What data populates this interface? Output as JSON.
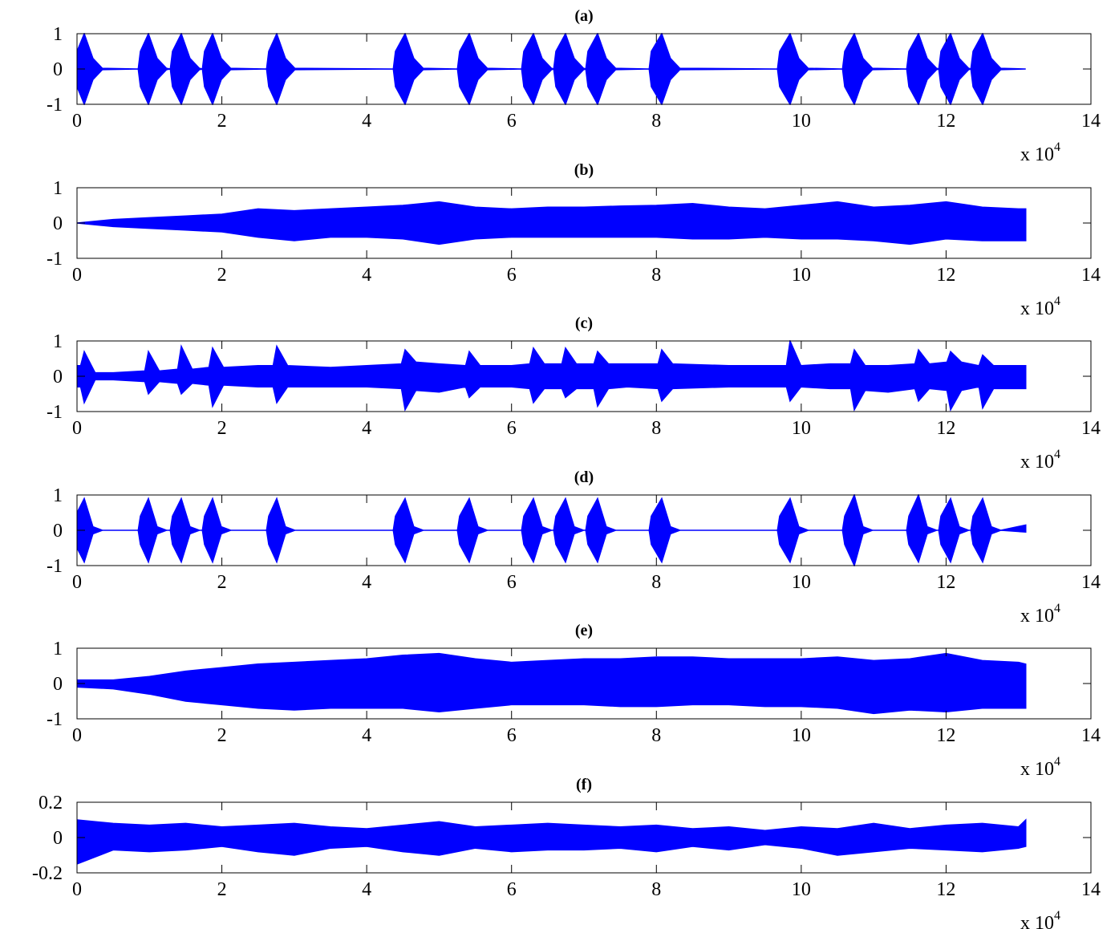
{
  "chart_data": [
    {
      "type": "envelope",
      "title": "(a)",
      "color": "#0000ff",
      "xlabel": "x 10",
      "xlabel_exponent": "4",
      "xlim": [
        0,
        140000
      ],
      "ylim": [
        -1,
        1
      ],
      "yticks": [
        -1,
        0,
        1
      ],
      "xticks": [
        0,
        {
          "value": 20000,
          "label": "2"
        },
        {
          "value": 40000,
          "label": "4"
        },
        {
          "value": 60000,
          "label": "6"
        },
        {
          "value": 80000,
          "label": "8"
        },
        {
          "value": 100000,
          "label": "10"
        },
        {
          "value": 120000,
          "label": "12"
        },
        {
          "value": 140000,
          "label": "14"
        }
      ],
      "x": [
        0,
        1000,
        2200,
        3500,
        8450,
        8750,
        9860,
        11060,
        12360,
        12880,
        13180,
        14400,
        15600,
        16900,
        17310,
        17610,
        18720,
        19920,
        21220,
        26170,
        26470,
        27580,
        28780,
        30080,
        43670,
        43970,
        45300,
        46500,
        47800,
        52530,
        52830,
        54160,
        55360,
        56660,
        61390,
        61690,
        63020,
        64220,
        65520,
        65820,
        66120,
        67450,
        68650,
        69950,
        70250,
        70550,
        71880,
        73080,
        74380,
        79000,
        79300,
        80740,
        81940,
        83240,
        96720,
        97020,
        98460,
        99660,
        100960,
        105700,
        106000,
        107330,
        108530,
        109830,
        114560,
        114860,
        116190,
        117390,
        118690,
        118990,
        119290,
        120620,
        121820,
        123120,
        123420,
        123720,
        125050,
        126250,
        127550,
        131000
      ],
      "upper": [
        0.5,
        1,
        0.3,
        0.02,
        0,
        0.5,
        1,
        0.3,
        0.02,
        0,
        0.5,
        1,
        0.3,
        0.02,
        0,
        0.5,
        1,
        0.3,
        0.02,
        0,
        0.5,
        1,
        0.3,
        0.02,
        0,
        0.5,
        1,
        0.3,
        0.02,
        0,
        0.5,
        1,
        0.3,
        0.02,
        0,
        0.5,
        1,
        0.3,
        0.02,
        0,
        0.5,
        1,
        0.3,
        0.02,
        0,
        0.5,
        1,
        0.3,
        0.02,
        0,
        0.5,
        1,
        0.3,
        0.02,
        0,
        0.5,
        1,
        0.3,
        0.02,
        0,
        0.5,
        1,
        0.3,
        0.02,
        0,
        0.5,
        1,
        0.3,
        0.02,
        0,
        0.5,
        1,
        0.3,
        0.02,
        0,
        0.5,
        1,
        0.3,
        0.02,
        0
      ],
      "lower": [
        -0.5,
        -1,
        -0.3,
        -0.02,
        0,
        -0.5,
        -1,
        -0.3,
        -0.02,
        0,
        -0.5,
        -1,
        -0.3,
        -0.02,
        0,
        -0.5,
        -1,
        -0.3,
        -0.02,
        0,
        -0.5,
        -1,
        -0.3,
        -0.02,
        0,
        -0.5,
        -1,
        -0.3,
        -0.02,
        0,
        -0.5,
        -1,
        -0.3,
        -0.02,
        0,
        -0.5,
        -1,
        -0.3,
        -0.02,
        0,
        -0.5,
        -1,
        -0.3,
        -0.02,
        0,
        -0.5,
        -1,
        -0.3,
        -0.02,
        0,
        -0.5,
        -1,
        -0.3,
        -0.02,
        0,
        -0.5,
        -1,
        -0.3,
        -0.02,
        0,
        -0.5,
        -1,
        -0.3,
        -0.02,
        0,
        -0.5,
        -1,
        -0.3,
        -0.02,
        0,
        -0.5,
        -1,
        -0.3,
        -0.02,
        0,
        -0.5,
        -1,
        -0.3,
        -0.02,
        0
      ]
    },
    {
      "type": "envelope",
      "title": "(b)",
      "color": "#0000ff",
      "xlabel": "x 10",
      "xlabel_exponent": "4",
      "xlim": [
        0,
        140000
      ],
      "ylim": [
        -1,
        1
      ],
      "yticks": [
        -1,
        0,
        1
      ],
      "xticks": [
        0,
        {
          "value": 20000,
          "label": "2"
        },
        {
          "value": 40000,
          "label": "4"
        },
        {
          "value": 60000,
          "label": "6"
        },
        {
          "value": 80000,
          "label": "8"
        },
        {
          "value": 100000,
          "label": "10"
        },
        {
          "value": 120000,
          "label": "12"
        },
        {
          "value": 140000,
          "label": "14"
        }
      ],
      "x": [
        0,
        5000,
        10000,
        15000,
        20000,
        25000,
        30000,
        35000,
        40000,
        45000,
        50000,
        55000,
        60000,
        65000,
        70000,
        75000,
        80000,
        85000,
        90000,
        95000,
        100000,
        105000,
        110000,
        115000,
        120000,
        125000,
        130000,
        131000
      ],
      "upper": [
        0,
        0.1,
        0.15,
        0.2,
        0.25,
        0.4,
        0.35,
        0.4,
        0.45,
        0.5,
        0.6,
        0.45,
        0.4,
        0.45,
        0.45,
        0.48,
        0.5,
        0.55,
        0.45,
        0.4,
        0.5,
        0.6,
        0.45,
        0.5,
        0.6,
        0.45,
        0.4,
        0.4
      ],
      "lower": [
        0,
        -0.1,
        -0.15,
        -0.2,
        -0.25,
        -0.4,
        -0.5,
        -0.4,
        -0.4,
        -0.45,
        -0.6,
        -0.45,
        -0.4,
        -0.4,
        -0.4,
        -0.4,
        -0.4,
        -0.45,
        -0.45,
        -0.4,
        -0.45,
        -0.45,
        -0.5,
        -0.6,
        -0.45,
        -0.5,
        -0.5,
        -0.5
      ]
    },
    {
      "type": "envelope",
      "title": "(c)",
      "color": "#0000ff",
      "xlabel": "x 10",
      "xlabel_exponent": "4",
      "xlim": [
        0,
        140000
      ],
      "ylim": [
        -1,
        1
      ],
      "yticks": [
        -1,
        0,
        1
      ],
      "xticks": [
        0,
        {
          "value": 20000,
          "label": "2"
        },
        {
          "value": 40000,
          "label": "4"
        },
        {
          "value": 60000,
          "label": "6"
        },
        {
          "value": 80000,
          "label": "8"
        },
        {
          "value": 100000,
          "label": "10"
        },
        {
          "value": 120000,
          "label": "12"
        },
        {
          "value": 140000,
          "label": "14"
        }
      ],
      "x": [
        0,
        500,
        1000,
        2500,
        5000,
        9360,
        9860,
        11360,
        13900,
        14400,
        15900,
        18220,
        18720,
        20220,
        25000,
        27080,
        27580,
        29080,
        35000,
        40000,
        44800,
        45300,
        46800,
        50000,
        53660,
        54160,
        55660,
        60000,
        62520,
        63020,
        64520,
        66950,
        67450,
        68950,
        71380,
        71880,
        73380,
        76000,
        80240,
        80740,
        82240,
        90000,
        97960,
        98460,
        99960,
        104000,
        106830,
        107330,
        108830,
        112000,
        115690,
        116190,
        117690,
        120120,
        120620,
        122120,
        124550,
        125050,
        126550,
        131000
      ],
      "upper": [
        0.3,
        0.3,
        0.7,
        0.1,
        0.1,
        0.15,
        0.7,
        0.15,
        0.2,
        0.85,
        0.2,
        0.25,
        0.8,
        0.25,
        0.3,
        0.3,
        0.85,
        0.3,
        0.25,
        0.3,
        0.35,
        0.75,
        0.4,
        0.35,
        0.3,
        0.7,
        0.3,
        0.3,
        0.35,
        0.8,
        0.35,
        0.35,
        0.8,
        0.35,
        0.35,
        0.7,
        0.35,
        0.35,
        0.35,
        0.75,
        0.35,
        0.3,
        0.3,
        1,
        0.3,
        0.35,
        0.35,
        0.75,
        0.3,
        0.3,
        0.35,
        0.75,
        0.35,
        0.4,
        0.7,
        0.4,
        0.3,
        0.6,
        0.3,
        0.3
      ],
      "lower": [
        -0.3,
        -0.3,
        -0.75,
        -0.1,
        -0.1,
        -0.15,
        -0.5,
        -0.15,
        -0.2,
        -0.5,
        -0.2,
        -0.25,
        -0.85,
        -0.25,
        -0.3,
        -0.3,
        -0.75,
        -0.3,
        -0.3,
        -0.3,
        -0.35,
        -0.95,
        -0.4,
        -0.45,
        -0.3,
        -0.6,
        -0.3,
        -0.3,
        -0.35,
        -0.75,
        -0.35,
        -0.35,
        -0.6,
        -0.35,
        -0.35,
        -0.85,
        -0.35,
        -0.3,
        -0.35,
        -0.7,
        -0.35,
        -0.3,
        -0.3,
        -0.7,
        -0.3,
        -0.35,
        -0.35,
        -0.95,
        -0.4,
        -0.45,
        -0.35,
        -0.7,
        -0.35,
        -0.4,
        -0.95,
        -0.4,
        -0.3,
        -0.9,
        -0.35,
        -0.35
      ]
    },
    {
      "type": "envelope",
      "title": "(d)",
      "color": "#0000ff",
      "xlabel": "x 10",
      "xlabel_exponent": "4",
      "xlim": [
        0,
        140000
      ],
      "ylim": [
        -1,
        1
      ],
      "yticks": [
        -1,
        0,
        1
      ],
      "xticks": [
        0,
        {
          "value": 20000,
          "label": "2"
        },
        {
          "value": 40000,
          "label": "4"
        },
        {
          "value": 60000,
          "label": "6"
        },
        {
          "value": 80000,
          "label": "8"
        },
        {
          "value": 100000,
          "label": "10"
        },
        {
          "value": 120000,
          "label": "12"
        },
        {
          "value": 140000,
          "label": "14"
        }
      ],
      "x": [
        0,
        1000,
        2200,
        3500,
        8450,
        8750,
        9860,
        11060,
        12360,
        12880,
        13180,
        14400,
        15600,
        16900,
        17310,
        17610,
        18720,
        19920,
        21220,
        26170,
        26470,
        27580,
        28780,
        30080,
        43670,
        43970,
        45300,
        46500,
        47800,
        52530,
        52830,
        54160,
        55360,
        56660,
        61390,
        61690,
        63020,
        64220,
        65520,
        65820,
        66120,
        67450,
        68650,
        69950,
        70250,
        70550,
        71880,
        73080,
        74380,
        79000,
        79300,
        80740,
        81940,
        83240,
        96720,
        97020,
        98460,
        99660,
        100960,
        105700,
        106000,
        107330,
        108530,
        109830,
        114560,
        114860,
        116190,
        117390,
        118690,
        118990,
        119290,
        120620,
        121820,
        123120,
        123420,
        123720,
        125050,
        126250,
        127550,
        131000
      ],
      "upper": [
        0.5,
        0.9,
        0.1,
        0,
        0,
        0.4,
        0.9,
        0.1,
        0,
        0,
        0.4,
        0.9,
        0.1,
        0,
        0,
        0.4,
        0.9,
        0.1,
        0,
        0,
        0.4,
        0.9,
        0.1,
        0,
        0,
        0.4,
        0.9,
        0.1,
        0,
        0,
        0.4,
        0.9,
        0.1,
        0,
        0,
        0.4,
        0.9,
        0.1,
        0,
        0,
        0.4,
        0.9,
        0.1,
        0,
        0,
        0.4,
        0.9,
        0.1,
        0,
        0,
        0.4,
        0.9,
        0.1,
        0,
        0,
        0.4,
        0.9,
        0.1,
        0,
        0,
        0.4,
        1,
        0.1,
        0,
        0,
        0.4,
        1,
        0.1,
        0,
        0,
        0.4,
        0.9,
        0.1,
        0,
        0,
        0.4,
        0.9,
        0.1,
        0,
        0.15
      ],
      "lower": [
        -0.5,
        -0.9,
        -0.1,
        0,
        0,
        -0.4,
        -0.9,
        -0.1,
        0,
        0,
        -0.4,
        -0.9,
        -0.1,
        0,
        0,
        -0.4,
        -0.9,
        -0.1,
        0,
        0,
        -0.4,
        -0.9,
        -0.1,
        0,
        0,
        -0.4,
        -0.9,
        -0.1,
        0,
        0,
        -0.4,
        -0.9,
        -0.1,
        0,
        0,
        -0.4,
        -0.9,
        -0.1,
        0,
        0,
        -0.4,
        -0.9,
        -0.1,
        0,
        0,
        -0.4,
        -0.9,
        -0.1,
        0,
        0,
        -0.4,
        -0.9,
        -0.1,
        0,
        0,
        -0.4,
        -0.9,
        -0.1,
        0,
        0,
        -0.4,
        -1,
        -0.1,
        0,
        0,
        -0.4,
        -0.9,
        -0.1,
        0,
        0,
        -0.4,
        -0.9,
        -0.1,
        0,
        0,
        -0.4,
        -0.9,
        -0.1,
        0,
        -0.05
      ]
    },
    {
      "type": "envelope",
      "title": "(e)",
      "color": "#0000ff",
      "xlabel": "x 10",
      "xlabel_exponent": "4",
      "xlim": [
        0,
        140000
      ],
      "ylim": [
        -1,
        1
      ],
      "yticks": [
        -1,
        0,
        1
      ],
      "xticks": [
        0,
        {
          "value": 20000,
          "label": "2"
        },
        {
          "value": 40000,
          "label": "4"
        },
        {
          "value": 60000,
          "label": "6"
        },
        {
          "value": 80000,
          "label": "8"
        },
        {
          "value": 100000,
          "label": "10"
        },
        {
          "value": 120000,
          "label": "12"
        },
        {
          "value": 140000,
          "label": "14"
        }
      ],
      "x": [
        0,
        5000,
        10000,
        15000,
        20000,
        25000,
        30000,
        35000,
        40000,
        45000,
        50000,
        55000,
        60000,
        65000,
        70000,
        75000,
        80000,
        85000,
        90000,
        95000,
        100000,
        105000,
        110000,
        115000,
        120000,
        125000,
        130000,
        131000
      ],
      "upper": [
        0.1,
        0.1,
        0.2,
        0.35,
        0.45,
        0.55,
        0.6,
        0.65,
        0.7,
        0.8,
        0.85,
        0.7,
        0.6,
        0.65,
        0.7,
        0.7,
        0.75,
        0.75,
        0.7,
        0.7,
        0.7,
        0.75,
        0.65,
        0.7,
        0.85,
        0.65,
        0.6,
        0.55
      ],
      "lower": [
        -0.1,
        -0.15,
        -0.3,
        -0.5,
        -0.6,
        -0.7,
        -0.75,
        -0.7,
        -0.7,
        -0.7,
        -0.8,
        -0.7,
        -0.6,
        -0.6,
        -0.6,
        -0.65,
        -0.65,
        -0.6,
        -0.6,
        -0.65,
        -0.65,
        -0.7,
        -0.85,
        -0.75,
        -0.8,
        -0.7,
        -0.7,
        -0.7
      ]
    },
    {
      "type": "envelope",
      "title": "(f)",
      "color": "#0000ff",
      "xlabel": "x 10",
      "xlabel_exponent": "4",
      "xlim": [
        0,
        140000
      ],
      "ylim": [
        -0.2,
        0.2
      ],
      "yticks": [
        -0.2,
        0,
        0.2
      ],
      "xticks": [
        0,
        {
          "value": 20000,
          "label": "2"
        },
        {
          "value": 40000,
          "label": "4"
        },
        {
          "value": 60000,
          "label": "6"
        },
        {
          "value": 80000,
          "label": "8"
        },
        {
          "value": 100000,
          "label": "10"
        },
        {
          "value": 120000,
          "label": "12"
        },
        {
          "value": 140000,
          "label": "14"
        }
      ],
      "x": [
        0,
        5000,
        10000,
        15000,
        20000,
        25000,
        30000,
        35000,
        40000,
        45000,
        50000,
        55000,
        60000,
        65000,
        70000,
        75000,
        80000,
        85000,
        90000,
        95000,
        100000,
        105000,
        110000,
        115000,
        120000,
        125000,
        130000,
        131000
      ],
      "upper": [
        0.1,
        0.08,
        0.07,
        0.08,
        0.06,
        0.07,
        0.08,
        0.06,
        0.05,
        0.07,
        0.09,
        0.06,
        0.07,
        0.08,
        0.07,
        0.06,
        0.07,
        0.05,
        0.06,
        0.04,
        0.06,
        0.05,
        0.08,
        0.05,
        0.07,
        0.08,
        0.06,
        0.1
      ],
      "lower": [
        -0.15,
        -0.07,
        -0.08,
        -0.07,
        -0.05,
        -0.08,
        -0.1,
        -0.06,
        -0.05,
        -0.08,
        -0.1,
        -0.06,
        -0.08,
        -0.07,
        -0.07,
        -0.06,
        -0.08,
        -0.05,
        -0.07,
        -0.04,
        -0.06,
        -0.1,
        -0.08,
        -0.06,
        -0.07,
        -0.08,
        -0.06,
        -0.05
      ]
    }
  ]
}
